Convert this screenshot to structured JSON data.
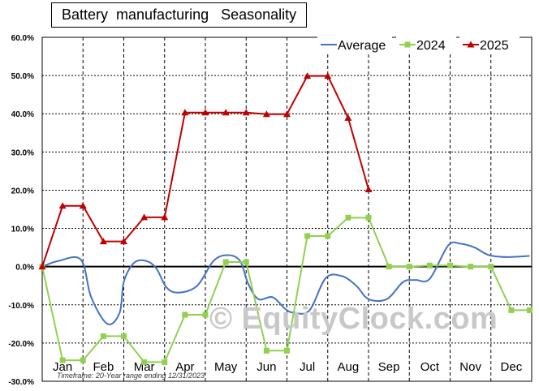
{
  "chart_data": {
    "type": "line",
    "title": "Battery  manufacturing   Seasonality",
    "categories": [
      "Jan",
      "Feb",
      "Mar",
      "Apr",
      "May",
      "Jun",
      "Jul",
      "Aug",
      "Sep",
      "Oct",
      "Nov",
      "Dec"
    ],
    "y_ticks": [
      "60.0%",
      "50.0%",
      "40.0%",
      "30.0%",
      "20.0%",
      "10.0%",
      "0.0%",
      "-10.0%",
      "-20.0%",
      "-30.0%"
    ],
    "ylim": [
      -30,
      60
    ],
    "grid": true,
    "legend_position": "top-right",
    "series": [
      {
        "name": "Average",
        "color": "#4472c4",
        "marker": "none",
        "x": [
          0,
          0.4,
          0.95,
          1.2,
          1.6,
          1.9,
          2.0,
          2.25,
          2.55,
          2.8,
          3.05,
          3.35,
          3.8,
          4.2,
          4.55,
          4.85,
          5.05,
          5.3,
          5.65,
          5.95,
          6.15,
          6.55,
          6.95,
          7.35,
          7.7,
          8.0,
          8.45,
          8.85,
          9.15,
          9.5,
          9.95,
          10.25,
          10.6,
          10.95,
          11.4,
          11.95
        ],
        "y": [
          0,
          1.5,
          1.8,
          -8,
          -15,
          -12,
          -4,
          1,
          1.5,
          -0.5,
          -5.5,
          -6.8,
          -5,
          1.5,
          3,
          1.5,
          -4.5,
          -8.5,
          -8,
          -11,
          -12,
          -11.5,
          -3,
          -2.5,
          -5,
          -8.5,
          -8.5,
          -4,
          -3.5,
          -3.2,
          5.5,
          6,
          5,
          3,
          2.5,
          2.8
        ]
      },
      {
        "name": "2024",
        "color": "#92d050",
        "marker": "square",
        "x": [
          0,
          0.5,
          1.0,
          1.5,
          2.0,
          2.5,
          3.0,
          3.5,
          4.0,
          4.5,
          5.0,
          5.5,
          6.0,
          6.5,
          7.0,
          7.5,
          8.0,
          8.5,
          9.0,
          9.5,
          10.0,
          10.5,
          11.0,
          11.5,
          11.95
        ],
        "y": [
          0,
          -24.5,
          -24.5,
          -18.2,
          -18.2,
          -25,
          -25,
          -12.6,
          -12.6,
          1.2,
          1.2,
          -22,
          -22,
          8,
          8,
          12.8,
          12.8,
          0,
          0,
          0.3,
          0.3,
          0,
          0,
          -11.4,
          -11.4
        ]
      },
      {
        "name": "2025",
        "color": "#c00000",
        "marker": "triangle",
        "x": [
          0,
          0.5,
          1.0,
          1.5,
          2.0,
          2.5,
          3.0,
          3.5,
          4.0,
          4.5,
          5.0,
          5.5,
          6.0,
          6.5,
          7.0,
          7.5,
          8.0
        ],
        "y": [
          0,
          15.9,
          15.9,
          6.6,
          6.6,
          12.9,
          12.9,
          40.3,
          40.3,
          40.3,
          40.3,
          39.9,
          39.9,
          49.9,
          49.9,
          38.9,
          20.2
        ]
      }
    ],
    "watermark": "© EquityClock.com",
    "footnote": "Timeframe: 20-Year range ending 12/31/2023"
  }
}
